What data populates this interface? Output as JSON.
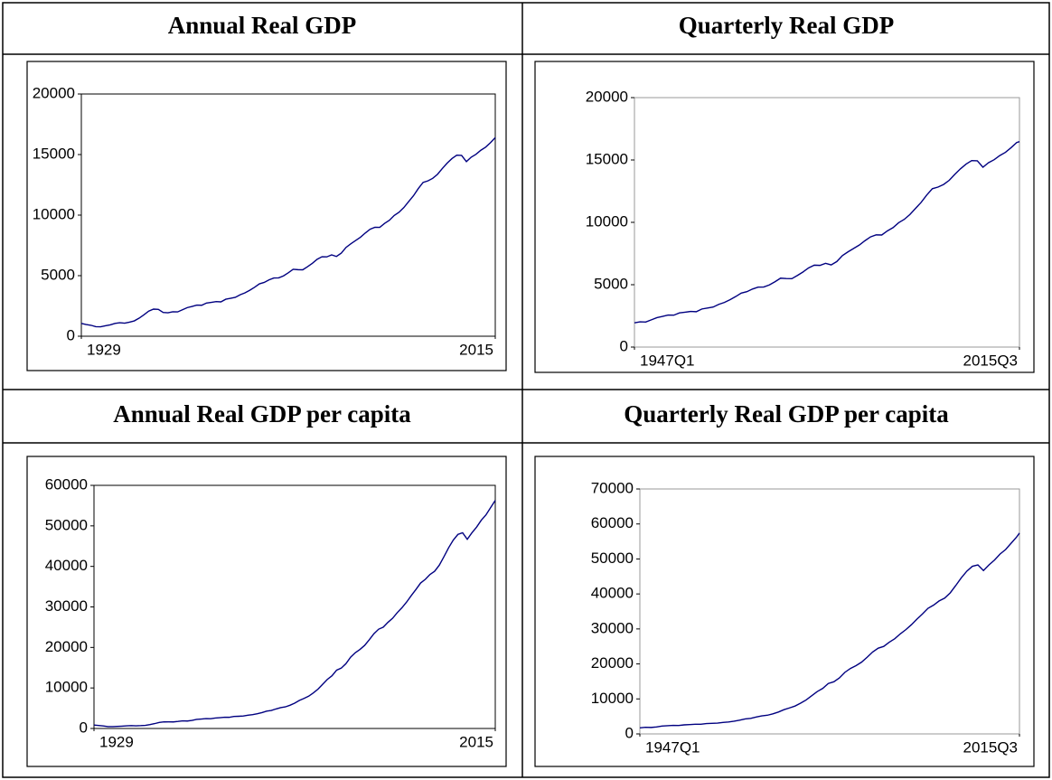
{
  "chart_data": [
    {
      "type": "line",
      "title": "Annual Real GDP",
      "color": "#000080",
      "x": [
        1929,
        1930,
        1931,
        1932,
        1933,
        1934,
        1935,
        1936,
        1937,
        1938,
        1939,
        1940,
        1941,
        1942,
        1943,
        1944,
        1945,
        1946,
        1947,
        1948,
        1949,
        1950,
        1951,
        1952,
        1953,
        1954,
        1955,
        1956,
        1957,
        1958,
        1959,
        1960,
        1961,
        1962,
        1963,
        1964,
        1965,
        1966,
        1967,
        1968,
        1969,
        1970,
        1971,
        1972,
        1973,
        1974,
        1975,
        1976,
        1977,
        1978,
        1979,
        1980,
        1981,
        1982,
        1983,
        1984,
        1985,
        1986,
        1987,
        1988,
        1989,
        1990,
        1991,
        1992,
        1993,
        1994,
        1995,
        1996,
        1997,
        1998,
        1999,
        2000,
        2001,
        2002,
        2003,
        2004,
        2005,
        2006,
        2007,
        2008,
        2009,
        2010,
        2011,
        2012,
        2013,
        2014,
        2015
      ],
      "values": [
        1057,
        966,
        904,
        788,
        778,
        862,
        939,
        1061,
        1115,
        1078,
        1164,
        1266,
        1491,
        1771,
        2073,
        2239,
        2218,
        1961,
        1939,
        2021,
        2009,
        2184,
        2360,
        2457,
        2571,
        2556,
        2739,
        2797,
        2856,
        2836,
        3053,
        3131,
        3210,
        3424,
        3580,
        3796,
        4046,
        4326,
        4442,
        4653,
        4807,
        4817,
        4980,
        5235,
        5524,
        5494,
        5485,
        5742,
        6024,
        6354,
        6566,
        6550,
        6716,
        6586,
        6856,
        7334,
        7637,
        7907,
        8180,
        8524,
        8834,
        8995,
        8986,
        9314,
        9574,
        9969,
        10236,
        10624,
        11113,
        11596,
        12187,
        12698,
        12827,
        13035,
        13369,
        13848,
        14290,
        14669,
        14951,
        14931,
        14419,
        14784,
        15021,
        15355,
        15612,
        15982,
        16397
      ],
      "xlim": [
        1929,
        2015
      ],
      "xticks": [
        1929,
        2015
      ],
      "ylim": [
        0,
        20000
      ],
      "yticks": [
        0,
        5000,
        10000,
        15000,
        20000
      ]
    },
    {
      "type": "line",
      "title": "Quarterly Real GDP",
      "color": "#000080",
      "x": [
        1947,
        1948,
        1949,
        1950,
        1951,
        1952,
        1953,
        1954,
        1955,
        1956,
        1957,
        1958,
        1959,
        1960,
        1961,
        1962,
        1963,
        1964,
        1965,
        1966,
        1967,
        1968,
        1969,
        1970,
        1971,
        1972,
        1973,
        1974,
        1975,
        1976,
        1977,
        1978,
        1979,
        1980,
        1981,
        1982,
        1983,
        1984,
        1985,
        1986,
        1987,
        1988,
        1989,
        1990,
        1991,
        1992,
        1993,
        1994,
        1995,
        1996,
        1997,
        1998,
        1999,
        2000,
        2001,
        2002,
        2003,
        2004,
        2005,
        2006,
        2007,
        2008,
        2009,
        2010,
        2011,
        2012,
        2013,
        2014,
        2015,
        2015.5
      ],
      "values": [
        1939,
        2021,
        2009,
        2184,
        2360,
        2457,
        2571,
        2556,
        2739,
        2797,
        2856,
        2836,
        3053,
        3131,
        3210,
        3424,
        3580,
        3796,
        4046,
        4326,
        4442,
        4653,
        4807,
        4817,
        4980,
        5235,
        5524,
        5494,
        5485,
        5742,
        6024,
        6354,
        6566,
        6550,
        6716,
        6586,
        6856,
        7334,
        7637,
        7907,
        8180,
        8524,
        8834,
        8995,
        8986,
        9314,
        9574,
        9969,
        10236,
        10624,
        11113,
        11596,
        12187,
        12698,
        12827,
        13035,
        13369,
        13848,
        14290,
        14669,
        14951,
        14931,
        14419,
        14784,
        15021,
        15355,
        15612,
        15982,
        16397,
        16470
      ],
      "xlim": [
        1947,
        2015.5
      ],
      "xticks": [
        {
          "value": 1947,
          "label": "1947Q1"
        },
        {
          "value": 2015.5,
          "label": "2015Q3"
        }
      ],
      "ylim": [
        0,
        20000
      ],
      "yticks": [
        0,
        5000,
        10000,
        15000,
        20000
      ]
    },
    {
      "type": "line",
      "title": "Annual Real GDP per capita",
      "color": "#000080",
      "x": [
        1929,
        1930,
        1931,
        1932,
        1933,
        1934,
        1935,
        1936,
        1937,
        1938,
        1939,
        1940,
        1941,
        1942,
        1943,
        1944,
        1945,
        1946,
        1947,
        1948,
        1949,
        1950,
        1951,
        1952,
        1953,
        1954,
        1955,
        1956,
        1957,
        1958,
        1959,
        1960,
        1961,
        1962,
        1963,
        1964,
        1965,
        1966,
        1967,
        1968,
        1969,
        1970,
        1971,
        1972,
        1973,
        1974,
        1975,
        1976,
        1977,
        1978,
        1979,
        1980,
        1981,
        1982,
        1983,
        1984,
        1985,
        1986,
        1987,
        1988,
        1989,
        1990,
        1991,
        1992,
        1993,
        1994,
        1995,
        1996,
        1997,
        1998,
        1999,
        2000,
        2001,
        2002,
        2003,
        2004,
        2005,
        2006,
        2007,
        2008,
        2009,
        2010,
        2011,
        2012,
        2013,
        2014,
        2015
      ],
      "values": [
        850,
        740,
        620,
        470,
        450,
        520,
        580,
        650,
        710,
        660,
        700,
        770,
        950,
        1200,
        1480,
        1620,
        1630,
        1620,
        1730,
        1880,
        1840,
        1990,
        2240,
        2340,
        2440,
        2410,
        2580,
        2670,
        2770,
        2760,
        2960,
        3010,
        3070,
        3270,
        3410,
        3630,
        3920,
        4270,
        4450,
        4820,
        5150,
        5330,
        5730,
        6250,
        6920,
        7420,
        7960,
        8780,
        9700,
        10900,
        12100,
        13000,
        14400,
        14900,
        16000,
        17600,
        18700,
        19500,
        20500,
        21900,
        23400,
        24500,
        25000,
        26200,
        27200,
        28600,
        29800,
        31200,
        32800,
        34300,
        35900,
        36800,
        38000,
        38800,
        40300,
        42400,
        44600,
        46500,
        47900,
        48300,
        46700,
        48300,
        49700,
        51400,
        52700,
        54500,
        56300
      ],
      "xlim": [
        1929,
        2015
      ],
      "xticks": [
        1929,
        2015
      ],
      "ylim": [
        0,
        60000
      ],
      "yticks": [
        0,
        10000,
        20000,
        30000,
        40000,
        50000,
        60000
      ]
    },
    {
      "type": "line",
      "title": "Quarterly Real GDP per capita",
      "color": "#000080",
      "x": [
        1947,
        1948,
        1949,
        1950,
        1951,
        1952,
        1953,
        1954,
        1955,
        1956,
        1957,
        1958,
        1959,
        1960,
        1961,
        1962,
        1963,
        1964,
        1965,
        1966,
        1967,
        1968,
        1969,
        1970,
        1971,
        1972,
        1973,
        1974,
        1975,
        1976,
        1977,
        1978,
        1979,
        1980,
        1981,
        1982,
        1983,
        1984,
        1985,
        1986,
        1987,
        1988,
        1989,
        1990,
        1991,
        1992,
        1993,
        1994,
        1995,
        1996,
        1997,
        1998,
        1999,
        2000,
        2001,
        2002,
        2003,
        2004,
        2005,
        2006,
        2007,
        2008,
        2009,
        2010,
        2011,
        2012,
        2013,
        2014,
        2015,
        2015.5
      ],
      "values": [
        1730,
        1880,
        1840,
        1990,
        2240,
        2340,
        2440,
        2410,
        2580,
        2670,
        2770,
        2760,
        2960,
        3010,
        3070,
        3270,
        3410,
        3630,
        3920,
        4270,
        4450,
        4820,
        5150,
        5330,
        5730,
        6250,
        6920,
        7420,
        7960,
        8780,
        9700,
        10900,
        12100,
        13000,
        14400,
        14900,
        16000,
        17600,
        18700,
        19500,
        20500,
        21900,
        23400,
        24500,
        25000,
        26200,
        27200,
        28600,
        29800,
        31200,
        32800,
        34300,
        35900,
        36800,
        38000,
        38800,
        40300,
        42400,
        44600,
        46500,
        47900,
        48300,
        46700,
        48300,
        49700,
        51400,
        52700,
        54500,
        56300,
        57400
      ],
      "xlim": [
        1947,
        2015.5
      ],
      "xticks": [
        {
          "value": 1947,
          "label": "1947Q1"
        },
        {
          "value": 2015.5,
          "label": "2015Q3"
        }
      ],
      "ylim": [
        0,
        70000
      ],
      "yticks": [
        0,
        10000,
        20000,
        30000,
        40000,
        50000,
        60000,
        70000
      ]
    }
  ]
}
